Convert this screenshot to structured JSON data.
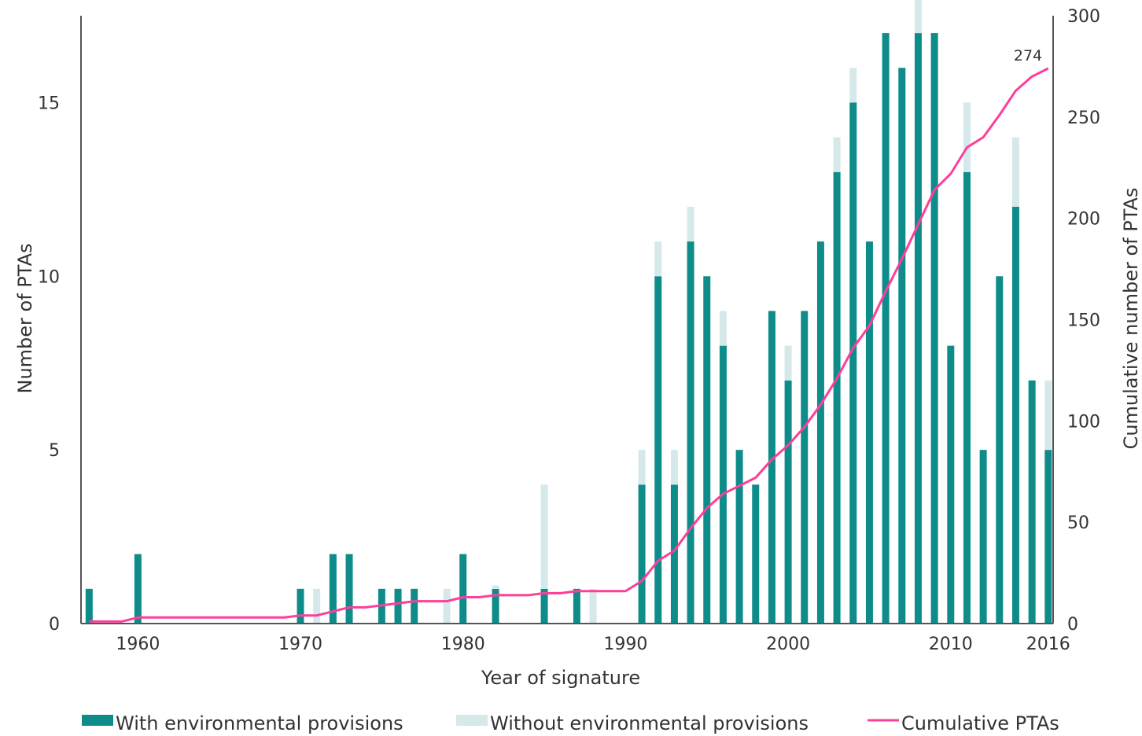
{
  "chart_data": {
    "type": "bar",
    "xlabel": "Year of signature",
    "ylabel": "Number of PTAs",
    "y2label": "Cumulative number of PTAs",
    "x_ticks": [
      "1960",
      "1970",
      "1980",
      "1990",
      "2000",
      "2010",
      "2016"
    ],
    "y_ticks": [
      "0",
      "5",
      "10",
      "15"
    ],
    "y2_ticks": [
      "0",
      "50",
      "100",
      "150",
      "200",
      "250",
      "300"
    ],
    "ylim": [
      0,
      17.5
    ],
    "y2lim": [
      0,
      300
    ],
    "xlim": [
      1956.5,
      2016.3
    ],
    "stacked": true,
    "legend_position": "bottom",
    "series": [
      {
        "name": "With environmental provisions",
        "color": "#0e8c8a",
        "values": [
          [
            1957,
            1
          ],
          [
            1960,
            2
          ],
          [
            1970,
            1
          ],
          [
            1972,
            2
          ],
          [
            1973,
            2
          ],
          [
            1975,
            1
          ],
          [
            1976,
            1
          ],
          [
            1977,
            1
          ],
          [
            1980,
            2
          ],
          [
            1982,
            1
          ],
          [
            1985,
            1
          ],
          [
            1987,
            1
          ],
          [
            1991,
            4
          ],
          [
            1992,
            10
          ],
          [
            1993,
            4
          ],
          [
            1994,
            11
          ],
          [
            1995,
            10
          ],
          [
            1996,
            8
          ],
          [
            1997,
            5
          ],
          [
            1998,
            4
          ],
          [
            1999,
            9
          ],
          [
            2000,
            7
          ],
          [
            2001,
            9
          ],
          [
            2002,
            11
          ],
          [
            2003,
            13
          ],
          [
            2004,
            15
          ],
          [
            2005,
            11
          ],
          [
            2006,
            17
          ],
          [
            2007,
            16
          ],
          [
            2008,
            17
          ],
          [
            2009,
            17
          ],
          [
            2010,
            8
          ],
          [
            2011,
            13
          ],
          [
            2012,
            5
          ],
          [
            2013,
            10
          ],
          [
            2014,
            12
          ],
          [
            2015,
            7
          ],
          [
            2016,
            5
          ]
        ]
      },
      {
        "name": "Without environmental provisions",
        "color": "#d6e9ea",
        "values": [
          [
            1971,
            1
          ],
          [
            1979,
            1
          ],
          [
            1982,
            0.1
          ],
          [
            1985,
            3
          ],
          [
            1988,
            1
          ],
          [
            1991,
            1
          ],
          [
            1992,
            1
          ],
          [
            1993,
            1
          ],
          [
            1994,
            1
          ],
          [
            1996,
            1
          ],
          [
            2000,
            1
          ],
          [
            2003,
            1
          ],
          [
            2004,
            1
          ],
          [
            2008,
            1
          ],
          [
            2011,
            2
          ],
          [
            2014,
            2
          ],
          [
            2016,
            2
          ]
        ]
      },
      {
        "name": "Cumulative PTAs",
        "type": "line",
        "axis": "right",
        "color": "#ff3d9a",
        "points": [
          [
            1957,
            1
          ],
          [
            1958,
            1
          ],
          [
            1959,
            1
          ],
          [
            1960,
            3
          ],
          [
            1961,
            3
          ],
          [
            1962,
            3
          ],
          [
            1963,
            3
          ],
          [
            1964,
            3
          ],
          [
            1965,
            3
          ],
          [
            1966,
            3
          ],
          [
            1967,
            3
          ],
          [
            1968,
            3
          ],
          [
            1969,
            3
          ],
          [
            1970,
            4
          ],
          [
            1971,
            4
          ],
          [
            1972,
            6
          ],
          [
            1973,
            8
          ],
          [
            1974,
            8
          ],
          [
            1975,
            9
          ],
          [
            1976,
            10
          ],
          [
            1977,
            11
          ],
          [
            1978,
            11
          ],
          [
            1979,
            11
          ],
          [
            1980,
            13
          ],
          [
            1981,
            13
          ],
          [
            1982,
            14
          ],
          [
            1983,
            14
          ],
          [
            1984,
            14
          ],
          [
            1985,
            15
          ],
          [
            1986,
            15
          ],
          [
            1987,
            16
          ],
          [
            1988,
            16
          ],
          [
            1989,
            16
          ],
          [
            1990,
            16
          ],
          [
            1991,
            21
          ],
          [
            1992,
            31
          ],
          [
            1993,
            36
          ],
          [
            1994,
            47
          ],
          [
            1995,
            57
          ],
          [
            1996,
            64
          ],
          [
            1997,
            68
          ],
          [
            1998,
            72
          ],
          [
            1999,
            81
          ],
          [
            2000,
            88
          ],
          [
            2001,
            97
          ],
          [
            2002,
            108
          ],
          [
            2003,
            121
          ],
          [
            2004,
            136
          ],
          [
            2005,
            147
          ],
          [
            2006,
            164
          ],
          [
            2007,
            180
          ],
          [
            2008,
            197
          ],
          [
            2009,
            214
          ],
          [
            2010,
            222
          ],
          [
            2011,
            235
          ],
          [
            2012,
            240
          ],
          [
            2013,
            251
          ],
          [
            2014,
            263
          ],
          [
            2015,
            270
          ],
          [
            2016,
            274
          ]
        ]
      }
    ],
    "annotations": [
      {
        "text": "274",
        "x": 2016,
        "y2": 274
      }
    ]
  }
}
